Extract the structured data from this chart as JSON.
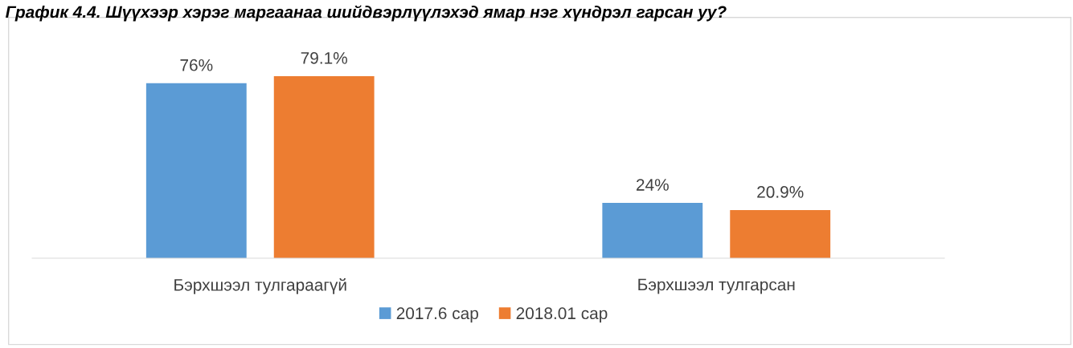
{
  "chart_data": {
    "type": "bar",
    "title": "График 4.4. Шүүхээр хэрэг маргаанаа шийдвэрлүүлэхэд ямар нэг хүндрэл гарсан уу?",
    "categories": [
      "Бэрхшээл тулгараагүй",
      "Бэрхшээл тулгарсан"
    ],
    "series": [
      {
        "name": "2017.6 сар",
        "color": "#5b9bd5",
        "values": [
          76,
          24
        ],
        "value_labels": [
          "76%",
          "24%"
        ]
      },
      {
        "name": "2018.01 сар",
        "color": "#ed7d31",
        "values": [
          79.1,
          20.9
        ],
        "value_labels": [
          "79.1%",
          "20.9%"
        ]
      }
    ],
    "legend": "bottom",
    "grid": false
  }
}
